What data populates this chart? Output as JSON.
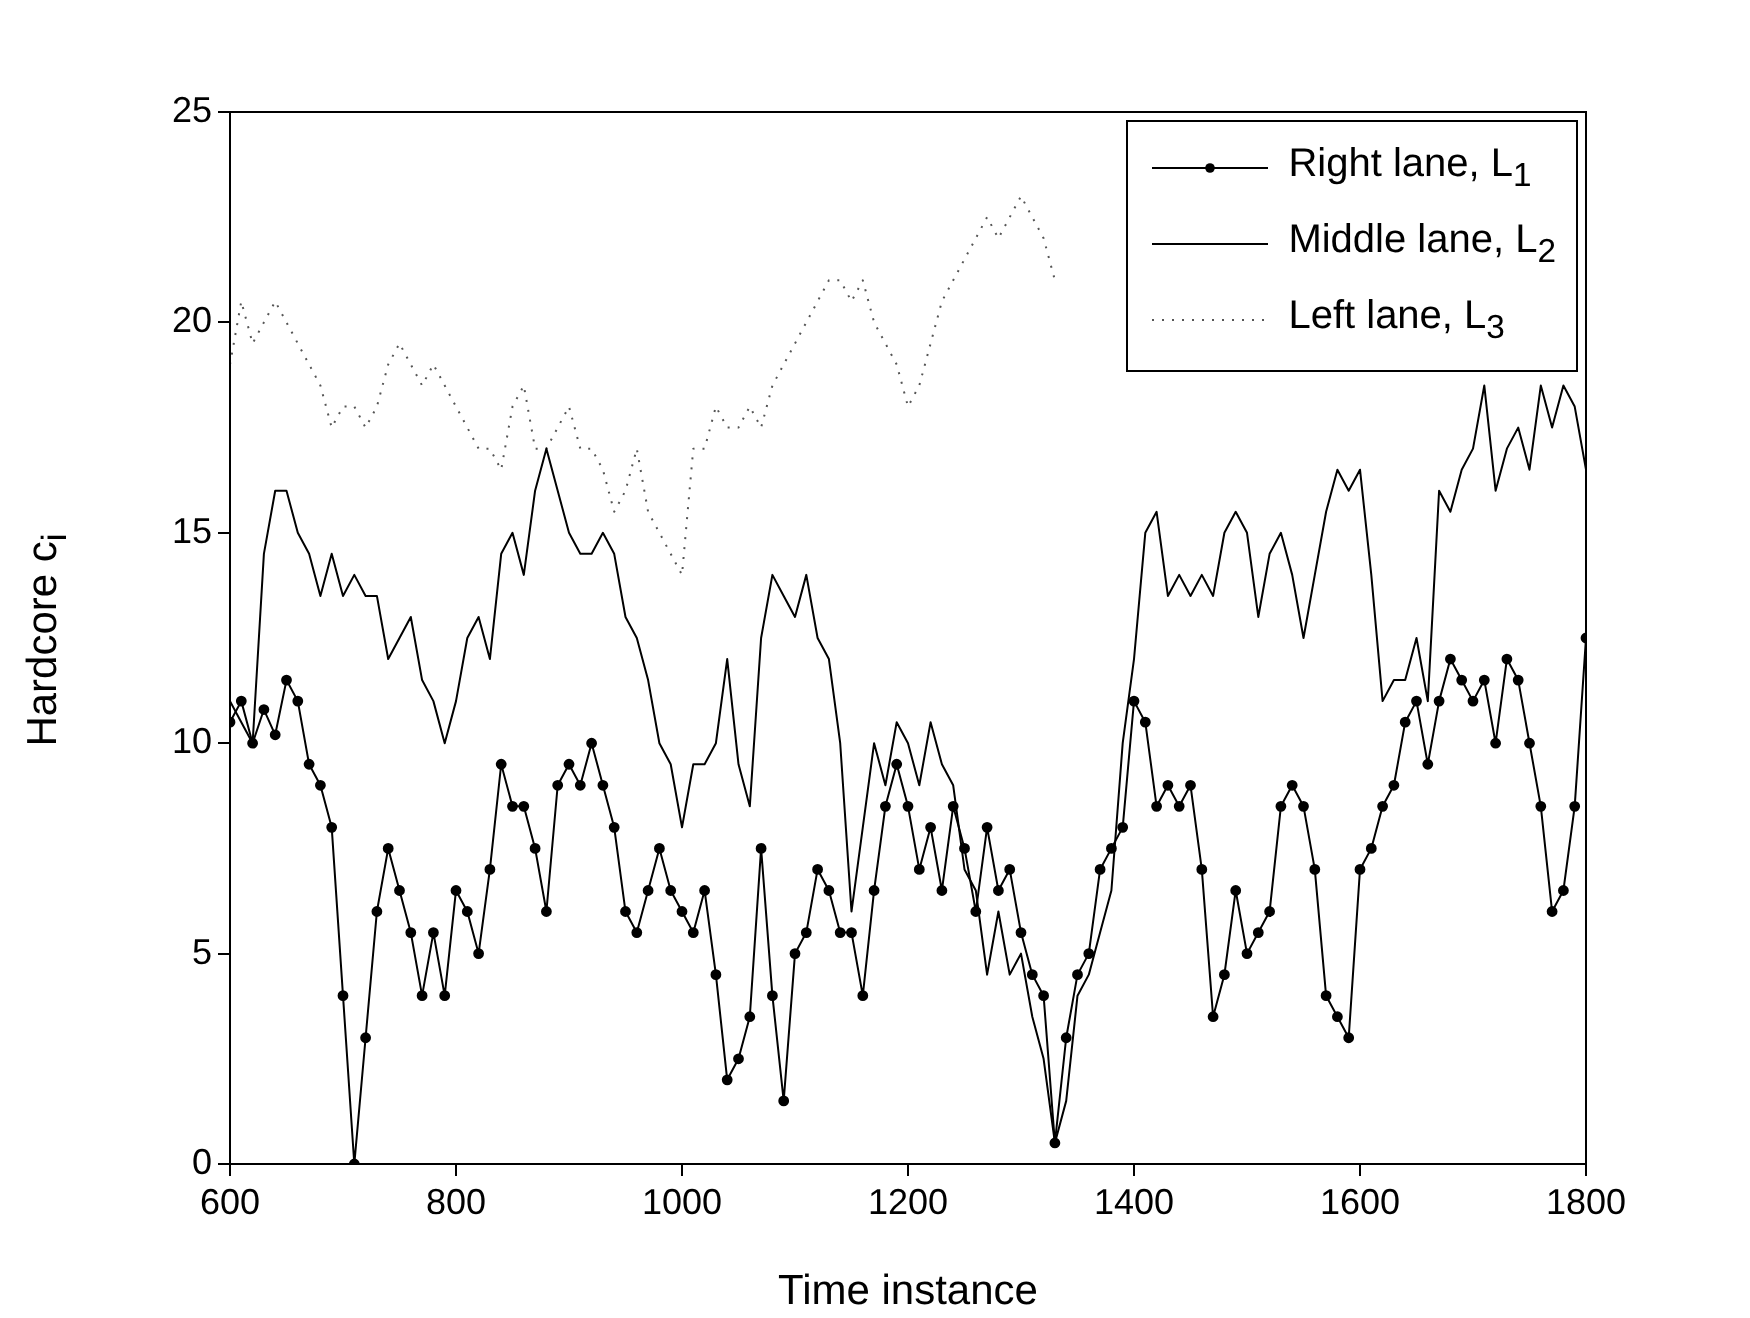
{
  "chart_data": {
    "type": "line",
    "xlabel": "Time instance",
    "ylabel": "Hardcore c$_{i}$",
    "x": [
      600,
      610,
      620,
      630,
      640,
      650,
      660,
      670,
      680,
      690,
      700,
      710,
      720,
      730,
      740,
      750,
      760,
      770,
      780,
      790,
      800,
      810,
      820,
      830,
      840,
      850,
      860,
      870,
      880,
      890,
      900,
      910,
      920,
      930,
      940,
      950,
      960,
      970,
      980,
      990,
      1000,
      1010,
      1020,
      1030,
      1040,
      1050,
      1060,
      1070,
      1080,
      1090,
      1100,
      1110,
      1120,
      1130,
      1140,
      1150,
      1160,
      1170,
      1180,
      1190,
      1200,
      1210,
      1220,
      1230,
      1240,
      1250,
      1260,
      1270,
      1280,
      1290,
      1300,
      1310,
      1320,
      1330,
      1340,
      1350,
      1360,
      1370,
      1380,
      1390,
      1400,
      1410,
      1420,
      1430,
      1440,
      1450,
      1460,
      1470,
      1480,
      1490,
      1500,
      1510,
      1520,
      1530,
      1540,
      1550,
      1560,
      1570,
      1580,
      1590,
      1600,
      1610,
      1620,
      1630,
      1640,
      1650,
      1660,
      1670,
      1680,
      1690,
      1700,
      1710,
      1720,
      1730,
      1740,
      1750,
      1760,
      1770,
      1780,
      1790,
      1800
    ],
    "series": [
      {
        "name": "Right lane, L$_{1}$",
        "color": "#000000",
        "marker": "circle",
        "line_style": "solid",
        "values": [
          10.5,
          11,
          10,
          10.8,
          10.2,
          11.5,
          11,
          9.5,
          9,
          8,
          4,
          0,
          3,
          6,
          7.5,
          6.5,
          5.5,
          4,
          5.5,
          4,
          6.5,
          6,
          5,
          7,
          9.5,
          8.5,
          8.5,
          7.5,
          6,
          9,
          9.5,
          9,
          10,
          9,
          8,
          6,
          5.5,
          6.5,
          7.5,
          6.5,
          6,
          5.5,
          6.5,
          4.5,
          2,
          2.5,
          3.5,
          7.5,
          4,
          1.5,
          5,
          5.5,
          7,
          6.5,
          5.5,
          5.5,
          4,
          6.5,
          8.5,
          9.5,
          8.5,
          7,
          8,
          6.5,
          8.5,
          7.5,
          6,
          8,
          6.5,
          7,
          5.5,
          4.5,
          4,
          0.5,
          3,
          4.5,
          5,
          7,
          7.5,
          8,
          11,
          10.5,
          8.5,
          9,
          8.5,
          9,
          7,
          3.5,
          4.5,
          6.5,
          5,
          5.5,
          6,
          8.5,
          9,
          8.5,
          7,
          4,
          3.5,
          3,
          7,
          7.5,
          8.5,
          9,
          10.5,
          11,
          9.5,
          11,
          12,
          11.5,
          11,
          11.5,
          10,
          12,
          11.5,
          10,
          8.5,
          6,
          6.5,
          8.5,
          12.5
        ]
      },
      {
        "name": "Middle lane, L$_{2}$",
        "color": "#000000",
        "marker": "none",
        "line_style": "solid",
        "values": [
          11,
          10.5,
          10,
          14.5,
          16,
          16,
          15,
          14.5,
          13.5,
          14.5,
          13.5,
          14,
          13.5,
          13.5,
          12,
          12.5,
          13,
          11.5,
          11,
          10,
          11,
          12.5,
          13,
          12,
          14.5,
          15,
          14,
          16,
          17,
          16,
          15,
          14.5,
          14.5,
          15,
          14.5,
          13,
          12.5,
          11.5,
          10,
          9.5,
          8,
          9.5,
          9.5,
          10,
          12,
          9.5,
          8.5,
          12.5,
          14,
          13.5,
          13,
          14,
          12.5,
          12,
          10,
          6,
          8,
          10,
          9,
          10.5,
          10,
          9,
          10.5,
          9.5,
          9,
          7,
          6.5,
          4.5,
          6,
          4.5,
          5,
          3.5,
          2.5,
          0.5,
          1.5,
          4,
          4.5,
          5.5,
          6.5,
          10,
          12,
          15,
          15.5,
          13.5,
          14,
          13.5,
          14,
          13.5,
          15,
          15.5,
          15,
          13,
          14.5,
          15,
          14,
          12.5,
          14,
          15.5,
          16.5,
          16,
          16.5,
          14,
          11,
          11.5,
          11.5,
          12.5,
          11,
          16,
          15.5,
          16.5,
          17,
          18.5,
          16,
          17,
          17.5,
          16.5,
          18.5,
          17.5,
          18.5,
          18,
          16.5
        ]
      },
      {
        "name": "Left lane, L$_{3}$",
        "color": "#555555",
        "marker": "none",
        "line_style": "dotted",
        "values": [
          19,
          20.5,
          19.5,
          20,
          20.5,
          20,
          19.5,
          19,
          18.5,
          17.5,
          18,
          18,
          17.5,
          18,
          19,
          19.5,
          19,
          18.5,
          19,
          18.5,
          18,
          17.5,
          17,
          17,
          16.5,
          18,
          18.5,
          17,
          17,
          17.5,
          18,
          17,
          17,
          16.5,
          15.5,
          16,
          17,
          15.5,
          15,
          14.5,
          14,
          17,
          17,
          18,
          17.5,
          17.5,
          18,
          17.5,
          18.5,
          19,
          19.5,
          20,
          20.5,
          21,
          21,
          20.5,
          21,
          20,
          19.5,
          19,
          18,
          18.5,
          19.5,
          20.5,
          21,
          21.5,
          22,
          22.5,
          22,
          22.5,
          23,
          22.5,
          22,
          21,
          null,
          null,
          null,
          null,
          null,
          null,
          null,
          null,
          null,
          null,
          null,
          null,
          null,
          null,
          null,
          null,
          null,
          null,
          null,
          null,
          null,
          null,
          null,
          null,
          null,
          null,
          null,
          null,
          null,
          null,
          null,
          null,
          null,
          null,
          null,
          null,
          null,
          null,
          null,
          null,
          null,
          null,
          null,
          null,
          null,
          null,
          null
        ]
      }
    ],
    "xlim": [
      600,
      1800
    ],
    "xticks": [
      600,
      800,
      1000,
      1200,
      1400,
      1600,
      1800
    ],
    "ylim": [
      0,
      25
    ],
    "yticks": [
      0,
      5,
      10,
      15,
      20,
      25
    ],
    "grid": false,
    "legend": "top right"
  }
}
